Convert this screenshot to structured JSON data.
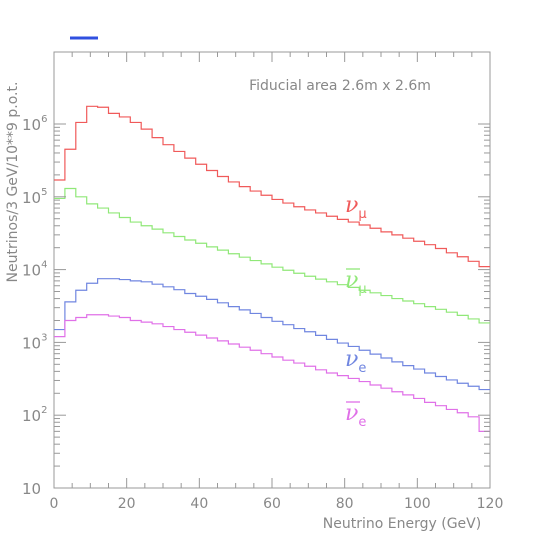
{
  "chart_data": {
    "type": "line",
    "step": true,
    "xlabel": "Neutrino Energy (GeV)",
    "ylabel": "Neutrinos/3 GeV/10**9 p.o.t.",
    "annotation": "Fiducial area 2.6m x 2.6m",
    "xlim": [
      0,
      120
    ],
    "ylim": [
      10,
      1000000
    ],
    "yscale": "log",
    "x_ticks": [
      0,
      20,
      40,
      60,
      80,
      100,
      120
    ],
    "y_ticks": [
      {
        "value": 10,
        "base": "10",
        "exp": ""
      },
      {
        "value": 100,
        "base": "10",
        "exp": "2"
      },
      {
        "value": 1000,
        "base": "10",
        "exp": "3"
      },
      {
        "value": 10000,
        "base": "10",
        "exp": "4"
      },
      {
        "value": 100000,
        "base": "10",
        "exp": "5"
      },
      {
        "value": 1000000,
        "base": "10",
        "exp": "6"
      }
    ],
    "bin_edges": [
      0,
      3,
      6,
      9,
      12,
      15,
      18,
      21,
      24,
      27,
      30,
      33,
      36,
      39,
      42,
      45,
      48,
      51,
      54,
      57,
      60,
      63,
      66,
      69,
      72,
      75,
      78,
      81,
      84,
      87,
      90,
      93,
      96,
      99,
      102,
      105,
      108,
      111,
      114,
      117,
      120
    ],
    "series": [
      {
        "name": "ν_μ",
        "label_main": "ν",
        "label_sub": "μ",
        "bar": false,
        "color": "#f05a5a",
        "values": [
          170000,
          450000,
          1050000,
          1750000,
          1700000,
          1400000,
          1250000,
          1050000,
          850000,
          650000,
          520000,
          420000,
          340000,
          280000,
          230000,
          190000,
          160000,
          138000,
          120000,
          105000,
          92000,
          82000,
          73000,
          66000,
          60000,
          54000,
          49000,
          45000,
          41000,
          37000,
          33000,
          30000,
          27000,
          24500,
          22000,
          19500,
          17000,
          15000,
          13000,
          11000
        ]
      },
      {
        "name": "ν̄_μ",
        "label_main": "ν",
        "label_sub": "μ",
        "bar": true,
        "color": "#90e878",
        "values": [
          95000,
          130000,
          100000,
          80000,
          70000,
          60000,
          52000,
          45000,
          40000,
          36000,
          32000,
          28500,
          25500,
          23000,
          20500,
          18500,
          16500,
          14800,
          13300,
          12000,
          10800,
          9800,
          8900,
          8100,
          7400,
          6800,
          6200,
          5700,
          5200,
          4800,
          4400,
          4000,
          3700,
          3400,
          3100,
          2850,
          2600,
          2350,
          2100,
          1850
        ]
      },
      {
        "name": "ν_e",
        "label_main": "ν",
        "label_sub": "e",
        "bar": false,
        "color": "#7086e0",
        "values": [
          1500,
          3600,
          5200,
          6500,
          7500,
          7500,
          7300,
          7000,
          6800,
          6300,
          5800,
          5300,
          4700,
          4300,
          3900,
          3500,
          3100,
          2800,
          2500,
          2200,
          1950,
          1750,
          1550,
          1400,
          1250,
          1100,
          980,
          880,
          780,
          690,
          610,
          540,
          480,
          430,
          380,
          340,
          305,
          275,
          250,
          225
        ]
      },
      {
        "name": "ν̄_e",
        "label_main": "ν",
        "label_sub": "e",
        "bar": true,
        "color": "#e070e8",
        "values": [
          1200,
          2000,
          2200,
          2400,
          2400,
          2300,
          2200,
          2000,
          1900,
          1800,
          1650,
          1500,
          1380,
          1260,
          1150,
          1050,
          950,
          860,
          780,
          700,
          630,
          570,
          520,
          470,
          420,
          380,
          350,
          320,
          290,
          260,
          235,
          210,
          190,
          170,
          150,
          135,
          120,
          108,
          95,
          60
        ]
      }
    ]
  },
  "legend_line_color": "#3050e0"
}
